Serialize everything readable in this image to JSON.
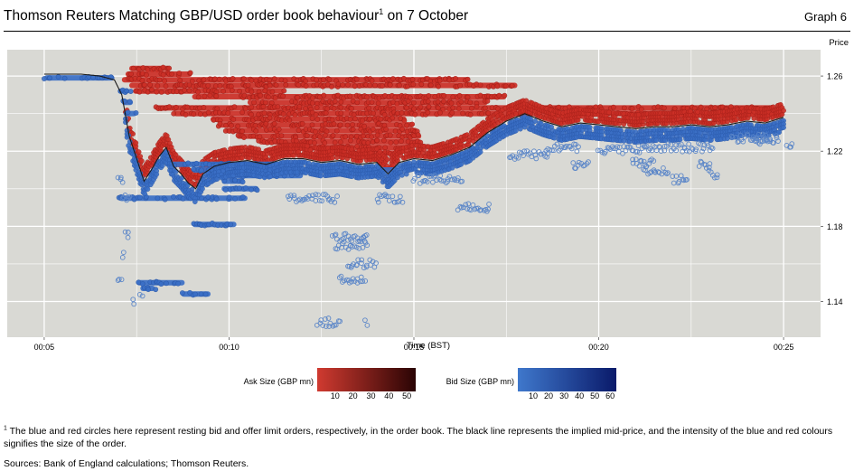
{
  "header": {
    "title_main": "Thomson Reuters Matching GBP/USD order book behaviour",
    "title_sup": "1",
    "title_tail": " on 7 October",
    "graph_label": "Graph 6"
  },
  "chart_data": {
    "type": "scatter",
    "xlabel": "Time (BST)",
    "ylabel": "Price",
    "x_ticks": [
      "00:05",
      "00:10",
      "00:15",
      "00:20",
      "00:25"
    ],
    "y_ticks": [
      "1.14",
      "1.18",
      "1.22",
      "1.26"
    ],
    "xlim_minutes": [
      4.0,
      26.0
    ],
    "ylim": [
      1.121,
      1.274
    ],
    "grid": true,
    "legend_position": "bottom",
    "legend": {
      "ask": {
        "label": "Ask Size (GBP mn)",
        "ticks": [
          "10",
          "20",
          "30",
          "40",
          "50"
        ],
        "color_low": "#d03a30",
        "color_high": "#2a0404"
      },
      "bid": {
        "label": "Bid Size (GBP mn)",
        "ticks": [
          "10",
          "20",
          "30",
          "40",
          "50",
          "60"
        ],
        "color_low": "#3f78cc",
        "color_high": "#0a1a6a"
      }
    },
    "colors": {
      "ask": "#cc2f26",
      "bid": "#3a6fc6",
      "bid_open": "#5b86c8",
      "mid": "#1a1a1a",
      "panel": "#d9d9d4",
      "grid": "#ffffff"
    },
    "series": [
      {
        "name": "Mid",
        "role": "implied mid-price",
        "x": [
          5.0,
          6.0,
          6.5,
          6.9,
          7.1,
          7.3,
          7.5,
          7.7,
          7.9,
          8.1,
          8.3,
          8.5,
          8.7,
          8.9,
          9.1,
          9.3,
          9.6,
          10.0,
          10.5,
          11.0,
          11.5,
          12.0,
          12.5,
          13.0,
          13.5,
          14.0,
          14.3,
          14.6,
          15.0,
          15.5,
          16.0,
          16.5,
          17.0,
          17.5,
          18.0,
          18.5,
          19.0,
          19.5,
          20.0,
          20.5,
          21.0,
          21.5,
          22.0,
          22.5,
          23.0,
          23.5,
          24.0,
          24.5,
          25.0
        ],
        "y": [
          1.261,
          1.261,
          1.26,
          1.258,
          1.25,
          1.228,
          1.216,
          1.204,
          1.21,
          1.217,
          1.222,
          1.212,
          1.208,
          1.203,
          1.2,
          1.208,
          1.212,
          1.214,
          1.215,
          1.213,
          1.216,
          1.216,
          1.214,
          1.215,
          1.213,
          1.214,
          1.208,
          1.214,
          1.216,
          1.215,
          1.218,
          1.222,
          1.23,
          1.236,
          1.24,
          1.236,
          1.233,
          1.235,
          1.234,
          1.233,
          1.232,
          1.233,
          1.233,
          1.234,
          1.233,
          1.234,
          1.236,
          1.235,
          1.238
        ]
      },
      {
        "name": "Ask",
        "role": "resting offer limit orders",
        "levels": [
          {
            "price": 1.264,
            "from": 7.3,
            "to": 8.4
          },
          {
            "price": 1.261,
            "from": 7.2,
            "to": 9.0
          },
          {
            "price": 1.258,
            "from": 7.1,
            "to": 16.5
          },
          {
            "price": 1.255,
            "from": 7.3,
            "to": 17.8
          },
          {
            "price": 1.252,
            "from": 7.4,
            "to": 11.5
          },
          {
            "price": 1.249,
            "from": 9.0,
            "to": 17.5
          },
          {
            "price": 1.246,
            "from": 10.5,
            "to": 17.0
          },
          {
            "price": 1.243,
            "from": 8.0,
            "to": 24.7
          },
          {
            "price": 1.24,
            "from": 8.5,
            "to": 24.8
          },
          {
            "price": 1.237,
            "from": 9.5,
            "to": 14.8
          },
          {
            "price": 1.234,
            "from": 9.7,
            "to": 15.0
          },
          {
            "price": 1.231,
            "from": 9.9,
            "to": 15.1
          },
          {
            "price": 1.228,
            "from": 10.2,
            "to": 15.2
          },
          {
            "price": 1.225,
            "from": 10.8,
            "to": 15.2
          },
          {
            "price": 1.222,
            "from": 11.5,
            "to": 14.9
          },
          {
            "price": 1.219,
            "from": 12.5,
            "to": 14.6
          }
        ]
      },
      {
        "name": "Bid",
        "role": "resting bid limit orders",
        "levels": [
          {
            "price": 1.259,
            "from": 5.0,
            "to": 6.9
          },
          {
            "price": 1.252,
            "from": 7.0,
            "to": 7.3
          },
          {
            "price": 1.246,
            "from": 7.1,
            "to": 7.4
          },
          {
            "price": 1.24,
            "from": 7.2,
            "to": 7.5
          },
          {
            "price": 1.213,
            "from": 8.3,
            "to": 11.5
          },
          {
            "price": 1.21,
            "from": 9.0,
            "to": 14.5
          },
          {
            "price": 1.207,
            "from": 9.5,
            "to": 12.0
          },
          {
            "price": 1.204,
            "from": 9.8,
            "to": 10.4
          },
          {
            "price": 1.2,
            "from": 9.8,
            "to": 10.8
          },
          {
            "price": 1.195,
            "from": 7.0,
            "to": 10.5
          },
          {
            "price": 1.181,
            "from": 9.0,
            "to": 10.2
          },
          {
            "price": 1.15,
            "from": 7.5,
            "to": 8.8
          },
          {
            "price": 1.147,
            "from": 7.6,
            "to": 8.0
          },
          {
            "price": 1.144,
            "from": 8.7,
            "to": 9.5
          }
        ]
      }
    ]
  },
  "footnote": {
    "sup": "1",
    "text": "The blue and red circles here represent resting bid and offer limit orders, respectively, in the order book. The black line represents the implied mid-price, and the intensity of the blue and red colours signifies the size of the order."
  },
  "sources": "Sources: Bank of England calculations; Thomson Reuters."
}
